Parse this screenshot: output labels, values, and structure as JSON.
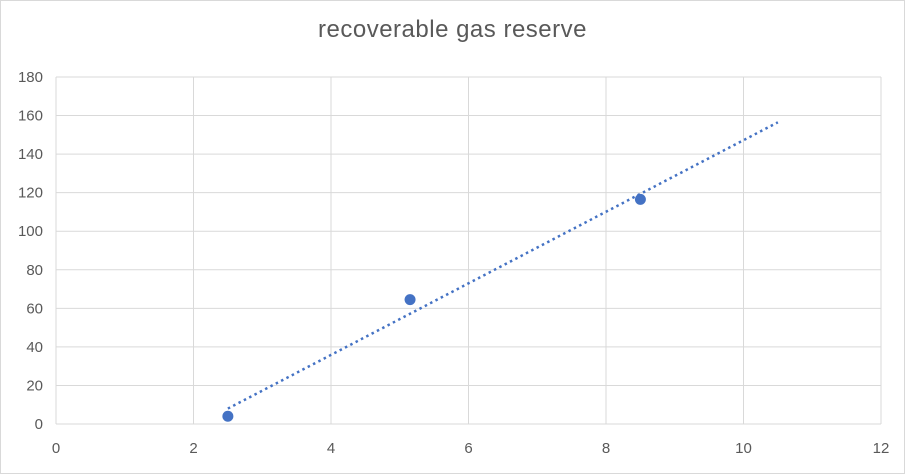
{
  "chart_data": {
    "type": "scatter",
    "title": "recoverable gas reserve",
    "xlabel": "",
    "ylabel": "",
    "xlim": [
      0,
      12
    ],
    "ylim": [
      0,
      180
    ],
    "x_ticks": [
      0,
      2,
      4,
      6,
      8,
      10,
      12
    ],
    "y_ticks": [
      0,
      20,
      40,
      60,
      80,
      100,
      120,
      140,
      160,
      180
    ],
    "grid": true,
    "legend": "none",
    "series": [
      {
        "points": [
          {
            "x": 2.5,
            "y": 4
          },
          {
            "x": 5.15,
            "y": 64.5
          },
          {
            "x": 8.5,
            "y": 116.5
          }
        ],
        "color": "#4472c4"
      }
    ],
    "trendline": {
      "type": "linear",
      "style": "dotted",
      "color": "#4472c4",
      "from": {
        "x": 2.5,
        "y": 8
      },
      "to": {
        "x": 10.5,
        "y": 156.5
      }
    }
  }
}
